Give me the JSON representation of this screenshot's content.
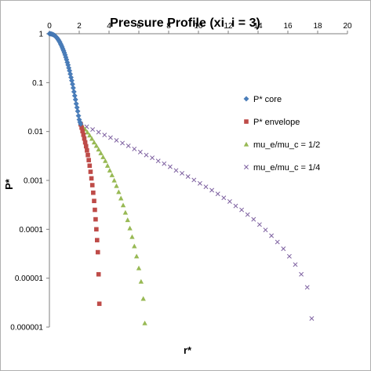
{
  "chart_data": {
    "type": "scatter",
    "title": "Pressure Profile (xi_i = 3)",
    "xlabel": "r*",
    "ylabel": "P*",
    "xlim": [
      0,
      20
    ],
    "ylim": [
      1e-06,
      1
    ],
    "yscale": "log",
    "xticks": [
      "0",
      "2",
      "4",
      "6",
      "8",
      "10",
      "12",
      "14",
      "16",
      "18",
      "20"
    ],
    "yticks": [
      "1",
      "0.1",
      "0.01",
      "0.001",
      "0.0001",
      "0.00001",
      "0.000001"
    ],
    "grid": "off",
    "legend_position": "right",
    "series": [
      {
        "name": "P* core",
        "marker": "diamond",
        "color": "#4a7ebb",
        "points": [
          [
            0.0,
            1.0
          ],
          [
            0.05,
            0.998
          ],
          [
            0.1,
            0.993
          ],
          [
            0.15,
            0.985
          ],
          [
            0.2,
            0.974
          ],
          [
            0.25,
            0.96
          ],
          [
            0.3,
            0.94
          ],
          [
            0.35,
            0.92
          ],
          [
            0.4,
            0.89
          ],
          [
            0.45,
            0.86
          ],
          [
            0.5,
            0.83
          ],
          [
            0.55,
            0.79
          ],
          [
            0.6,
            0.75
          ],
          [
            0.65,
            0.71
          ],
          [
            0.7,
            0.67
          ],
          [
            0.75,
            0.62
          ],
          [
            0.8,
            0.58
          ],
          [
            0.85,
            0.535
          ],
          [
            0.9,
            0.49
          ],
          [
            0.95,
            0.45
          ],
          [
            1.0,
            0.41
          ],
          [
            1.05,
            0.37
          ],
          [
            1.1,
            0.33
          ],
          [
            1.15,
            0.295
          ],
          [
            1.2,
            0.26
          ],
          [
            1.25,
            0.23
          ],
          [
            1.3,
            0.2
          ],
          [
            1.35,
            0.175
          ],
          [
            1.4,
            0.15
          ],
          [
            1.45,
            0.128
          ],
          [
            1.5,
            0.11
          ],
          [
            1.55,
            0.093
          ],
          [
            1.6,
            0.078
          ],
          [
            1.65,
            0.065
          ],
          [
            1.7,
            0.054
          ],
          [
            1.75,
            0.045
          ],
          [
            1.8,
            0.037
          ],
          [
            1.85,
            0.031
          ],
          [
            1.9,
            0.026
          ],
          [
            1.95,
            0.021
          ],
          [
            2.0,
            0.0175
          ],
          [
            2.05,
            0.0155
          ],
          [
            2.1,
            0.0142
          ]
        ]
      },
      {
        "name": "P* envelope",
        "marker": "square",
        "color": "#be4b48",
        "points": [
          [
            2.1,
            0.014
          ],
          [
            2.16,
            0.012
          ],
          [
            2.22,
            0.0102
          ],
          [
            2.28,
            0.0086
          ],
          [
            2.34,
            0.0072
          ],
          [
            2.4,
            0.006
          ],
          [
            2.46,
            0.005
          ],
          [
            2.52,
            0.0041
          ],
          [
            2.58,
            0.0033
          ],
          [
            2.64,
            0.0026
          ],
          [
            2.7,
            0.002
          ],
          [
            2.76,
            0.0015
          ],
          [
            2.82,
            0.0011
          ],
          [
            2.88,
            0.0008
          ],
          [
            2.94,
            0.00056
          ],
          [
            3.0,
            0.00038
          ],
          [
            3.05,
            0.00025
          ],
          [
            3.1,
            0.00016
          ],
          [
            3.15,
            0.0001
          ],
          [
            3.2,
            6e-05
          ],
          [
            3.25,
            3.4e-05
          ],
          [
            3.3,
            1.2e-05
          ],
          [
            3.35,
            3e-06
          ]
        ]
      },
      {
        "name": "mu_e/mu_c = 1/2",
        "marker": "triangle",
        "color": "#98b954",
        "points": [
          [
            2.1,
            0.0142
          ],
          [
            2.25,
            0.0125
          ],
          [
            2.4,
            0.011
          ],
          [
            2.55,
            0.0096
          ],
          [
            2.7,
            0.0083
          ],
          [
            2.85,
            0.0071
          ],
          [
            3.0,
            0.006
          ],
          [
            3.15,
            0.0051
          ],
          [
            3.3,
            0.0043
          ],
          [
            3.45,
            0.0036
          ],
          [
            3.6,
            0.003
          ],
          [
            3.75,
            0.0025
          ],
          [
            3.9,
            0.002
          ],
          [
            4.05,
            0.0016
          ],
          [
            4.2,
            0.00128
          ],
          [
            4.35,
            0.001
          ],
          [
            4.5,
            0.00077
          ],
          [
            4.65,
            0.00058
          ],
          [
            4.8,
            0.00043
          ],
          [
            4.95,
            0.00031
          ],
          [
            5.1,
            0.00022
          ],
          [
            5.25,
            0.000155
          ],
          [
            5.4,
            0.000105
          ],
          [
            5.55,
            7e-05
          ],
          [
            5.7,
            4.5e-05
          ],
          [
            5.85,
            2.8e-05
          ],
          [
            6.0,
            1.6e-05
          ],
          [
            6.15,
            8.5e-06
          ],
          [
            6.3,
            3.8e-06
          ],
          [
            6.4,
            1.2e-06
          ]
        ]
      },
      {
        "name": "mu_e/mu_c = 1/4",
        "marker": "x",
        "color": "#7d60a0",
        "points": [
          [
            2.1,
            0.0142
          ],
          [
            2.5,
            0.0125
          ],
          [
            2.9,
            0.011
          ],
          [
            3.3,
            0.0097
          ],
          [
            3.7,
            0.0085
          ],
          [
            4.1,
            0.0075
          ],
          [
            4.5,
            0.0066
          ],
          [
            4.9,
            0.0058
          ],
          [
            5.3,
            0.0051
          ],
          [
            5.7,
            0.0044
          ],
          [
            6.1,
            0.0038
          ],
          [
            6.5,
            0.0033
          ],
          [
            6.9,
            0.0029
          ],
          [
            7.3,
            0.0025
          ],
          [
            7.7,
            0.0022
          ],
          [
            8.1,
            0.0019
          ],
          [
            8.5,
            0.0016
          ],
          [
            8.9,
            0.0014
          ],
          [
            9.3,
            0.0012
          ],
          [
            9.7,
            0.00102
          ],
          [
            10.1,
            0.00087
          ],
          [
            10.5,
            0.00074
          ],
          [
            10.9,
            0.00063
          ],
          [
            11.3,
            0.00053
          ],
          [
            11.7,
            0.00044
          ],
          [
            12.1,
            0.00037
          ],
          [
            12.5,
            0.0003
          ],
          [
            12.9,
            0.00025
          ],
          [
            13.3,
            0.0002
          ],
          [
            13.7,
            0.00016
          ],
          [
            14.1,
            0.000125
          ],
          [
            14.5,
            9.7e-05
          ],
          [
            14.9,
            7.4e-05
          ],
          [
            15.3,
            5.5e-05
          ],
          [
            15.7,
            4e-05
          ],
          [
            16.1,
            2.8e-05
          ],
          [
            16.5,
            1.9e-05
          ],
          [
            16.9,
            1.2e-05
          ],
          [
            17.3,
            6.5e-06
          ],
          [
            17.6,
            1.5e-06
          ]
        ]
      }
    ]
  }
}
